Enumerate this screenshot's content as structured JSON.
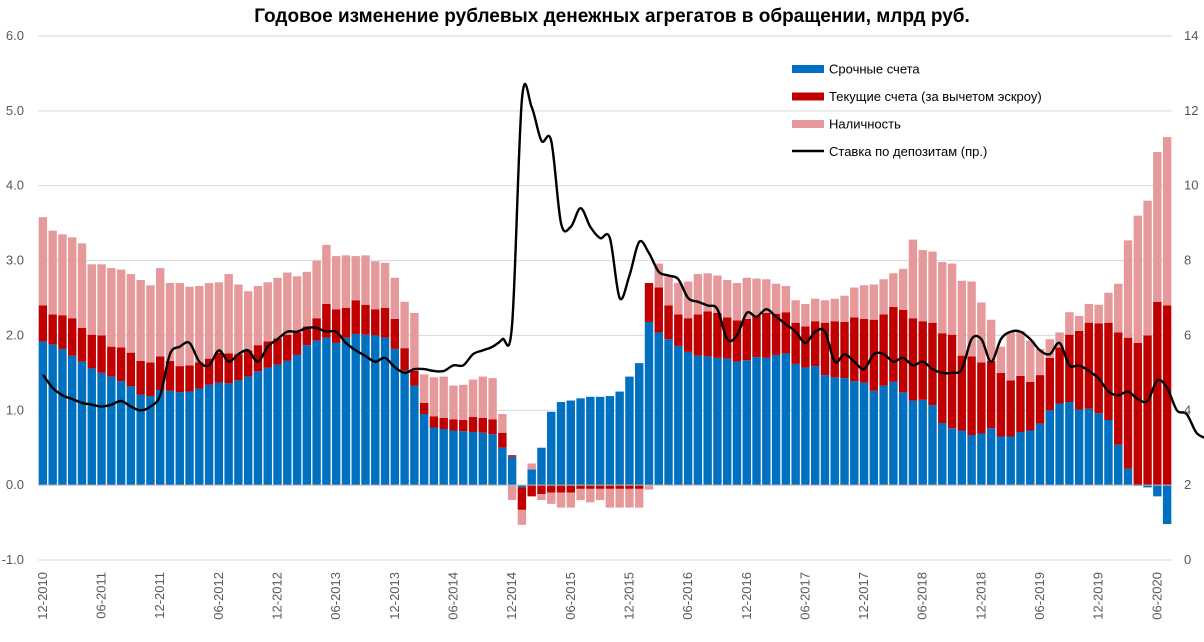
{
  "chart_data": {
    "type": "bar",
    "title": "Годовое изменение рублевых денежных агрегатов в обращении, млрд руб.",
    "ylim_left": [
      -1.0,
      6.0
    ],
    "yticks_left": [
      "-1.0",
      "0.0",
      "1.0",
      "2.0",
      "3.0",
      "4.0",
      "5.0",
      "6.0"
    ],
    "ylim_right": [
      0,
      14
    ],
    "yticks_right": [
      "0",
      "2",
      "4",
      "6",
      "8",
      "10",
      "12",
      "14"
    ],
    "grid": true,
    "legend_position": "top-right",
    "colors": {
      "term": "#0070c0",
      "current": "#c00000",
      "cash": "#e6999b",
      "rate": "#000000"
    },
    "x_tick_labels": [
      {
        "index": 0,
        "label": "12-2010"
      },
      {
        "index": 6,
        "label": "06-2011"
      },
      {
        "index": 12,
        "label": "12-2011"
      },
      {
        "index": 18,
        "label": "06-2012"
      },
      {
        "index": 24,
        "label": "12-2012"
      },
      {
        "index": 30,
        "label": "06-2013"
      },
      {
        "index": 36,
        "label": "12-2013"
      },
      {
        "index": 42,
        "label": "06-2014"
      },
      {
        "index": 48,
        "label": "12-2014"
      },
      {
        "index": 54,
        "label": "06-2015"
      },
      {
        "index": 60,
        "label": "12-2015"
      },
      {
        "index": 66,
        "label": "06-2016"
      },
      {
        "index": 72,
        "label": "12-2016"
      },
      {
        "index": 78,
        "label": "06-2017"
      },
      {
        "index": 84,
        "label": "12-2017"
      },
      {
        "index": 90,
        "label": "06-2018"
      },
      {
        "index": 96,
        "label": "12-2018"
      },
      {
        "index": 102,
        "label": "06-2019"
      },
      {
        "index": 108,
        "label": "12-2019"
      },
      {
        "index": 114,
        "label": "06-2020"
      }
    ],
    "series": [
      {
        "key": "term",
        "name": "Срочные счета",
        "axis": "left",
        "kind": "bar",
        "values": [
          1.92,
          1.88,
          1.82,
          1.73,
          1.65,
          1.56,
          1.5,
          1.45,
          1.39,
          1.32,
          1.21,
          1.19,
          1.27,
          1.26,
          1.24,
          1.25,
          1.29,
          1.34,
          1.37,
          1.36,
          1.4,
          1.45,
          1.52,
          1.57,
          1.61,
          1.66,
          1.74,
          1.87,
          1.93,
          1.97,
          1.9,
          1.97,
          2.02,
          2.01,
          2.0,
          1.97,
          1.82,
          1.53,
          1.33,
          0.95,
          0.77,
          0.75,
          0.73,
          0.72,
          0.71,
          0.7,
          0.68,
          0.5,
          0.38,
          -0.03,
          0.21,
          0.5,
          0.98,
          1.11,
          1.13,
          1.16,
          1.18,
          1.18,
          1.19,
          1.25,
          1.45,
          1.63,
          2.18,
          2.04,
          1.95,
          1.86,
          1.78,
          1.73,
          1.72,
          1.7,
          1.69,
          1.65,
          1.67,
          1.71,
          1.7,
          1.74,
          1.76,
          1.62,
          1.57,
          1.59,
          1.47,
          1.44,
          1.43,
          1.39,
          1.37,
          1.26,
          1.33,
          1.38,
          1.24,
          1.13,
          1.14,
          1.07,
          0.83,
          0.76,
          0.73,
          0.67,
          0.69,
          0.76,
          0.65,
          0.65,
          0.71,
          0.73,
          0.82,
          1.0,
          1.09,
          1.11,
          1.01,
          1.02,
          0.96,
          0.87,
          0.54,
          0.22,
          -0.01,
          -0.03,
          -0.15,
          -0.52
        ]
      },
      {
        "key": "current",
        "name": "Текущие счета (за вычетом эскроу)",
        "axis": "left",
        "kind": "bar",
        "values": [
          0.48,
          0.4,
          0.45,
          0.5,
          0.45,
          0.45,
          0.5,
          0.4,
          0.45,
          0.45,
          0.45,
          0.45,
          0.45,
          0.4,
          0.35,
          0.35,
          0.35,
          0.35,
          0.4,
          0.4,
          0.35,
          0.35,
          0.35,
          0.35,
          0.35,
          0.35,
          0.3,
          0.25,
          0.3,
          0.45,
          0.45,
          0.4,
          0.45,
          0.4,
          0.35,
          0.4,
          0.4,
          0.3,
          0.2,
          0.15,
          0.15,
          0.15,
          0.15,
          0.15,
          0.2,
          0.2,
          0.2,
          0.2,
          0.02,
          -0.3,
          -0.15,
          -0.12,
          -0.1,
          -0.1,
          -0.1,
          -0.05,
          -0.05,
          -0.05,
          -0.05,
          -0.05,
          -0.05,
          -0.05,
          0.52,
          0.6,
          0.45,
          0.42,
          0.45,
          0.55,
          0.6,
          0.6,
          0.55,
          0.55,
          0.55,
          0.55,
          0.6,
          0.55,
          0.55,
          0.55,
          0.55,
          0.6,
          0.7,
          0.75,
          0.75,
          0.85,
          0.85,
          0.95,
          0.95,
          1.0,
          1.1,
          1.1,
          1.05,
          1.1,
          1.2,
          1.25,
          1.0,
          1.05,
          0.95,
          0.9,
          0.85,
          0.75,
          0.75,
          0.65,
          0.65,
          0.7,
          0.75,
          0.9,
          1.05,
          1.15,
          1.2,
          1.3,
          1.5,
          1.75,
          1.9,
          2.0,
          2.45,
          2.4
        ]
      },
      {
        "key": "cash",
        "name": "Наличность",
        "axis": "left",
        "kind": "bar",
        "values": [
          1.18,
          1.12,
          1.08,
          1.08,
          1.13,
          0.94,
          0.95,
          1.05,
          1.04,
          1.05,
          1.08,
          1.03,
          1.18,
          1.04,
          1.11,
          1.05,
          1.02,
          1.01,
          0.94,
          1.06,
          0.93,
          0.79,
          0.79,
          0.79,
          0.81,
          0.83,
          0.75,
          0.73,
          0.77,
          0.79,
          0.71,
          0.7,
          0.59,
          0.66,
          0.64,
          0.6,
          0.55,
          0.62,
          0.77,
          0.38,
          0.52,
          0.55,
          0.45,
          0.47,
          0.5,
          0.55,
          0.55,
          0.25,
          -0.2,
          -0.2,
          0.08,
          -0.08,
          -0.15,
          -0.2,
          -0.2,
          -0.15,
          -0.18,
          -0.15,
          -0.25,
          -0.25,
          -0.25,
          -0.25,
          -0.06,
          0.32,
          0.39,
          0.42,
          0.49,
          0.54,
          0.51,
          0.5,
          0.5,
          0.5,
          0.55,
          0.5,
          0.45,
          0.4,
          0.35,
          0.3,
          0.3,
          0.3,
          0.3,
          0.3,
          0.35,
          0.4,
          0.45,
          0.47,
          0.47,
          0.45,
          0.55,
          1.05,
          0.95,
          0.95,
          0.95,
          0.95,
          1.0,
          1.0,
          0.8,
          0.55,
          0.35,
          0.65,
          0.6,
          0.55,
          0.35,
          0.25,
          0.2,
          0.3,
          0.2,
          0.25,
          0.25,
          0.4,
          0.65,
          1.3,
          1.7,
          1.8,
          2.0,
          2.25
        ]
      },
      {
        "key": "rate",
        "name": "Ставка по депозитам (пр.)",
        "axis": "right",
        "kind": "line",
        "values": [
          4.95,
          4.6,
          4.4,
          4.3,
          4.2,
          4.15,
          4.1,
          4.15,
          4.25,
          4.1,
          4.0,
          4.1,
          4.4,
          5.5,
          5.7,
          5.8,
          5.3,
          5.2,
          5.6,
          5.3,
          5.5,
          5.6,
          5.3,
          5.7,
          5.9,
          6.1,
          6.1,
          6.2,
          6.2,
          6.1,
          6.1,
          5.8,
          5.6,
          5.45,
          5.3,
          5.4,
          5.15,
          5.0,
          5.1,
          5.1,
          5.05,
          5.05,
          5.2,
          5.2,
          5.5,
          5.6,
          5.7,
          5.9,
          6.3,
          12.3,
          12.1,
          11.2,
          11.2,
          9.0,
          8.9,
          9.4,
          8.9,
          8.6,
          8.6,
          7.0,
          7.6,
          8.5,
          8.2,
          7.7,
          7.6,
          7.5,
          7.0,
          6.9,
          6.8,
          6.7,
          5.9,
          6.0,
          6.6,
          6.5,
          6.7,
          6.5,
          6.3,
          6.1,
          5.8,
          6.1,
          6.1,
          5.3,
          5.5,
          5.3,
          5.1,
          5.5,
          5.5,
          5.3,
          5.4,
          5.2,
          5.3,
          5.1,
          5.0,
          5.0,
          5.1,
          5.9,
          5.9,
          5.3,
          5.9,
          6.1,
          6.1,
          5.9,
          5.6,
          5.5,
          5.8,
          5.2,
          5.2,
          5.05,
          4.85,
          4.5,
          4.4,
          4.5,
          4.3,
          4.25,
          4.8,
          4.6,
          4.0,
          3.9,
          3.4,
          3.25
        ]
      }
    ]
  }
}
